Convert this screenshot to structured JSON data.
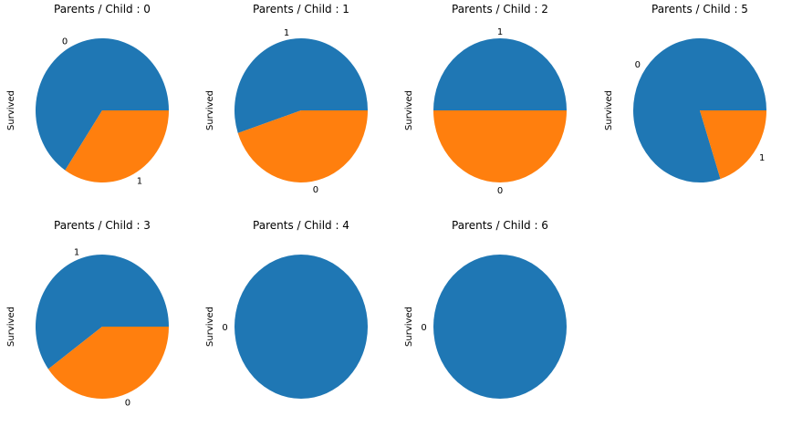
{
  "colors": {
    "series_0": "#1f77b4",
    "series_1": "#ff7f0e"
  },
  "chart_data": [
    {
      "type": "pie",
      "title": "Parents / Child : 0",
      "ylabel": "Survived",
      "categories": [
        "0",
        "1"
      ],
      "values": [
        0.656,
        0.344
      ],
      "colors": [
        "#1f77b4",
        "#ff7f0e"
      ]
    },
    {
      "type": "pie",
      "title": "Parents / Child : 1",
      "ylabel": "Survived",
      "categories": [
        "1",
        "0"
      ],
      "values": [
        0.551,
        0.449
      ],
      "colors": [
        "#1f77b4",
        "#ff7f0e"
      ]
    },
    {
      "type": "pie",
      "title": "Parents / Child : 2",
      "ylabel": "Survived",
      "categories": [
        "1",
        "0"
      ],
      "values": [
        0.5,
        0.5
      ],
      "colors": [
        "#1f77b4",
        "#ff7f0e"
      ]
    },
    {
      "type": "pie",
      "title": "Parents / Child : 5",
      "ylabel": "Survived",
      "categories": [
        "0",
        "1"
      ],
      "values": [
        0.8,
        0.2
      ],
      "colors": [
        "#1f77b4",
        "#ff7f0e"
      ]
    },
    {
      "type": "pie",
      "title": "Parents / Child : 3",
      "ylabel": "Survived",
      "categories": [
        "1",
        "0"
      ],
      "values": [
        0.6,
        0.4
      ],
      "colors": [
        "#1f77b4",
        "#ff7f0e"
      ]
    },
    {
      "type": "pie",
      "title": "Parents / Child : 4",
      "ylabel": "Survived",
      "categories": [
        "0"
      ],
      "values": [
        1.0
      ],
      "colors": [
        "#1f77b4"
      ]
    },
    {
      "type": "pie",
      "title": "Parents / Child : 6",
      "ylabel": "Survived",
      "categories": [
        "0"
      ],
      "values": [
        1.0
      ],
      "colors": [
        "#1f77b4"
      ]
    }
  ]
}
